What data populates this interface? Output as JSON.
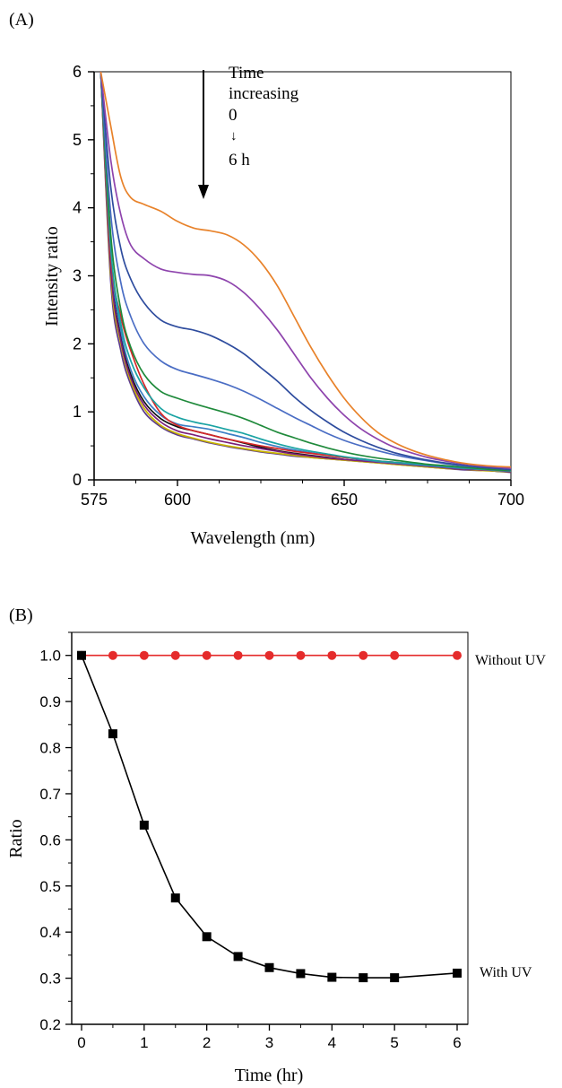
{
  "chart_data": [
    {
      "panel_label": "(A)",
      "type": "line",
      "xlabel": "Wavelength (nm)",
      "ylabel": "Intensity  ratio",
      "xlim": [
        575,
        700
      ],
      "ylim": [
        0,
        6
      ],
      "x_ticks": [
        "575",
        "600",
        "650",
        "700"
      ],
      "y_ticks": [
        "0",
        "1",
        "2",
        "3",
        "4",
        "5",
        "6"
      ],
      "grid": false,
      "annotation": {
        "line1": "Time",
        "line2": "increasing",
        "line3": "0",
        "arrow_glyph": "↓",
        "line4": "6 h"
      },
      "curve_x": [
        577,
        580,
        583,
        586,
        590,
        595,
        600,
        605,
        610,
        615,
        620,
        625,
        630,
        635,
        640,
        645,
        650,
        655,
        660,
        665,
        670,
        675,
        680,
        685,
        690,
        695,
        700
      ],
      "series": [
        {
          "color": "#E8822A",
          "values": [
            6.0,
            5.2,
            4.45,
            4.15,
            4.05,
            3.95,
            3.8,
            3.7,
            3.66,
            3.6,
            3.45,
            3.2,
            2.85,
            2.4,
            1.95,
            1.55,
            1.2,
            0.92,
            0.7,
            0.55,
            0.44,
            0.36,
            0.3,
            0.25,
            0.22,
            0.2,
            0.19
          ]
        },
        {
          "color": "#8E44AD",
          "values": [
            6.0,
            4.7,
            3.9,
            3.45,
            3.25,
            3.1,
            3.05,
            3.02,
            3.0,
            2.92,
            2.75,
            2.5,
            2.2,
            1.85,
            1.5,
            1.2,
            0.95,
            0.75,
            0.6,
            0.48,
            0.4,
            0.33,
            0.28,
            0.24,
            0.21,
            0.19,
            0.17
          ]
        },
        {
          "color": "#2E4C9E",
          "values": [
            6.0,
            4.3,
            3.4,
            2.95,
            2.6,
            2.35,
            2.25,
            2.2,
            2.12,
            2.0,
            1.85,
            1.65,
            1.45,
            1.22,
            1.02,
            0.85,
            0.7,
            0.58,
            0.48,
            0.4,
            0.34,
            0.29,
            0.25,
            0.22,
            0.19,
            0.17,
            0.15
          ]
        },
        {
          "color": "#4A6DC4",
          "values": [
            6.0,
            3.9,
            2.9,
            2.4,
            2.0,
            1.75,
            1.62,
            1.55,
            1.48,
            1.4,
            1.3,
            1.18,
            1.05,
            0.92,
            0.8,
            0.68,
            0.58,
            0.5,
            0.43,
            0.37,
            0.32,
            0.28,
            0.24,
            0.21,
            0.19,
            0.17,
            0.15
          ]
        },
        {
          "color": "#1F8A3B",
          "values": [
            6.0,
            3.6,
            2.5,
            1.95,
            1.55,
            1.3,
            1.2,
            1.12,
            1.05,
            0.98,
            0.9,
            0.8,
            0.7,
            0.62,
            0.54,
            0.47,
            0.41,
            0.36,
            0.32,
            0.29,
            0.26,
            0.23,
            0.21,
            0.19,
            0.17,
            0.15,
            0.14
          ]
        },
        {
          "color": "#1AA3A3",
          "values": [
            6.0,
            3.4,
            2.3,
            1.75,
            1.35,
            1.05,
            0.92,
            0.85,
            0.8,
            0.74,
            0.68,
            0.6,
            0.53,
            0.47,
            0.42,
            0.38,
            0.34,
            0.31,
            0.28,
            0.26,
            0.24,
            0.22,
            0.2,
            0.18,
            0.16,
            0.15,
            0.13
          ]
        },
        {
          "color": "#D62728",
          "values": [
            6.0,
            3.3,
            2.4,
            1.9,
            1.4,
            0.98,
            0.8,
            0.72,
            0.66,
            0.6,
            0.55,
            0.5,
            0.46,
            0.42,
            0.39,
            0.36,
            0.33,
            0.31,
            0.28,
            0.26,
            0.24,
            0.22,
            0.2,
            0.18,
            0.16,
            0.15,
            0.13
          ]
        },
        {
          "color": "#3B7FC4",
          "values": [
            6.0,
            3.3,
            2.2,
            1.62,
            1.22,
            0.95,
            0.82,
            0.78,
            0.74,
            0.68,
            0.62,
            0.55,
            0.49,
            0.44,
            0.4,
            0.36,
            0.33,
            0.3,
            0.27,
            0.25,
            0.23,
            0.21,
            0.19,
            0.17,
            0.16,
            0.14,
            0.13
          ]
        },
        {
          "color": "#7A1F7A",
          "values": [
            6.0,
            3.1,
            2.05,
            1.5,
            1.1,
            0.85,
            0.72,
            0.66,
            0.6,
            0.55,
            0.5,
            0.46,
            0.42,
            0.38,
            0.35,
            0.32,
            0.3,
            0.28,
            0.26,
            0.24,
            0.22,
            0.2,
            0.18,
            0.16,
            0.15,
            0.14,
            0.12
          ]
        },
        {
          "color": "#C8B400",
          "values": [
            6.0,
            3.0,
            2.0,
            1.45,
            1.05,
            0.8,
            0.68,
            0.61,
            0.55,
            0.5,
            0.46,
            0.42,
            0.39,
            0.36,
            0.33,
            0.31,
            0.29,
            0.27,
            0.25,
            0.23,
            0.21,
            0.19,
            0.17,
            0.16,
            0.14,
            0.13,
            0.12
          ]
        },
        {
          "color": "#111111",
          "values": [
            6.0,
            3.15,
            2.1,
            1.55,
            1.15,
            0.9,
            0.78,
            0.72,
            0.66,
            0.6,
            0.54,
            0.48,
            0.43,
            0.39,
            0.36,
            0.33,
            0.3,
            0.28,
            0.26,
            0.24,
            0.22,
            0.2,
            0.18,
            0.16,
            0.15,
            0.13,
            0.12
          ]
        },
        {
          "color": "#5B3A8C",
          "values": [
            6.0,
            2.9,
            1.9,
            1.4,
            1.0,
            0.78,
            0.66,
            0.6,
            0.54,
            0.49,
            0.45,
            0.41,
            0.38,
            0.35,
            0.33,
            0.31,
            0.29,
            0.27,
            0.25,
            0.23,
            0.21,
            0.19,
            0.17,
            0.15,
            0.14,
            0.13,
            0.11
          ]
        }
      ]
    },
    {
      "panel_label": "(B)",
      "type": "line",
      "xlabel": "Time (hr)",
      "ylabel": "Ratio",
      "xlim": [
        0,
        6
      ],
      "ylim": [
        0.2,
        1.05
      ],
      "x_ticks": [
        "0",
        "1",
        "2",
        "3",
        "4",
        "5",
        "6"
      ],
      "y_ticks": [
        "0.2",
        "0.3",
        "0.4",
        "0.5",
        "0.6",
        "0.7",
        "0.8",
        "0.9",
        "1.0"
      ],
      "grid": false,
      "x": [
        0,
        0.5,
        1,
        1.5,
        2,
        2.5,
        3,
        3.5,
        4,
        4.5,
        5,
        6
      ],
      "series": [
        {
          "name": "Without UV",
          "color": "#E52B2B",
          "marker": "circle",
          "values": [
            1.0,
            1.0,
            1.0,
            1.0,
            1.0,
            1.0,
            1.0,
            1.0,
            1.0,
            1.0,
            1.0,
            1.0
          ]
        },
        {
          "name": "With UV",
          "color": "#000000",
          "marker": "square",
          "values": [
            1.0,
            0.83,
            0.632,
            0.474,
            0.39,
            0.347,
            0.323,
            0.31,
            0.302,
            0.301,
            0.301,
            0.311
          ]
        }
      ]
    }
  ]
}
